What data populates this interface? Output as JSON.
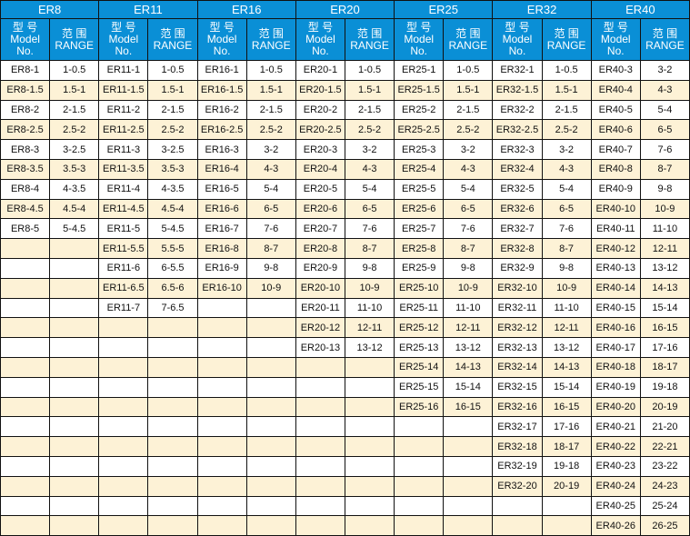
{
  "header": {
    "model_label": "型 号\nModel\nNo.",
    "range_label": "范 围\nRANGE"
  },
  "colors": {
    "header_bg": "#0a8fd6",
    "stripe": "#fdf2d6"
  },
  "groups": [
    {
      "name": "ER8",
      "rows": [
        [
          "ER8-1",
          "1-0.5"
        ],
        [
          "ER8-1.5",
          "1.5-1"
        ],
        [
          "ER8-2",
          "2-1.5"
        ],
        [
          "ER8-2.5",
          "2.5-2"
        ],
        [
          "ER8-3",
          "3-2.5"
        ],
        [
          "ER8-3.5",
          "3.5-3"
        ],
        [
          "ER8-4",
          "4-3.5"
        ],
        [
          "ER8-4.5",
          "4.5-4"
        ],
        [
          "ER8-5",
          "5-4.5"
        ]
      ]
    },
    {
      "name": "ER11",
      "rows": [
        [
          "ER11-1",
          "1-0.5"
        ],
        [
          "ER11-1.5",
          "1.5-1"
        ],
        [
          "ER11-2",
          "2-1.5"
        ],
        [
          "ER11-2.5",
          "2.5-2"
        ],
        [
          "ER11-3",
          "3-2.5"
        ],
        [
          "ER11-3.5",
          "3.5-3"
        ],
        [
          "ER11-4",
          "4-3.5"
        ],
        [
          "ER11-4.5",
          "4.5-4"
        ],
        [
          "ER11-5",
          "5-4.5"
        ],
        [
          "ER11-5.5",
          "5.5-5"
        ],
        [
          "ER11-6",
          "6-5.5"
        ],
        [
          "ER11-6.5",
          "6.5-6"
        ],
        [
          "ER11-7",
          "7-6.5"
        ]
      ]
    },
    {
      "name": "ER16",
      "rows": [
        [
          "ER16-1",
          "1-0.5"
        ],
        [
          "ER16-1.5",
          "1.5-1"
        ],
        [
          "ER16-2",
          "2-1.5"
        ],
        [
          "ER16-2.5",
          "2.5-2"
        ],
        [
          "ER16-3",
          "3-2"
        ],
        [
          "ER16-4",
          "4-3"
        ],
        [
          "ER16-5",
          "5-4"
        ],
        [
          "ER16-6",
          "6-5"
        ],
        [
          "ER16-7",
          "7-6"
        ],
        [
          "ER16-8",
          "8-7"
        ],
        [
          "ER16-9",
          "9-8"
        ],
        [
          "ER16-10",
          "10-9"
        ]
      ]
    },
    {
      "name": "ER20",
      "rows": [
        [
          "ER20-1",
          "1-0.5"
        ],
        [
          "ER20-1.5",
          "1.5-1"
        ],
        [
          "ER20-2",
          "2-1.5"
        ],
        [
          "ER20-2.5",
          "2.5-2"
        ],
        [
          "ER20-3",
          "3-2"
        ],
        [
          "ER20-4",
          "4-3"
        ],
        [
          "ER20-5",
          "5-4"
        ],
        [
          "ER20-6",
          "6-5"
        ],
        [
          "ER20-7",
          "7-6"
        ],
        [
          "ER20-8",
          "8-7"
        ],
        [
          "ER20-9",
          "9-8"
        ],
        [
          "ER20-10",
          "10-9"
        ],
        [
          "ER20-11",
          "11-10"
        ],
        [
          "ER20-12",
          "12-11"
        ],
        [
          "ER20-13",
          "13-12"
        ]
      ]
    },
    {
      "name": "ER25",
      "rows": [
        [
          "ER25-1",
          "1-0.5"
        ],
        [
          "ER25-1.5",
          "1.5-1"
        ],
        [
          "ER25-2",
          "2-1.5"
        ],
        [
          "ER25-2.5",
          "2.5-2"
        ],
        [
          "ER25-3",
          "3-2"
        ],
        [
          "ER25-4",
          "4-3"
        ],
        [
          "ER25-5",
          "5-4"
        ],
        [
          "ER25-6",
          "6-5"
        ],
        [
          "ER25-7",
          "7-6"
        ],
        [
          "ER25-8",
          "8-7"
        ],
        [
          "ER25-9",
          "9-8"
        ],
        [
          "ER25-10",
          "10-9"
        ],
        [
          "ER25-11",
          "11-10"
        ],
        [
          "ER25-12",
          "12-11"
        ],
        [
          "ER25-13",
          "13-12"
        ],
        [
          "ER25-14",
          "14-13"
        ],
        [
          "ER25-15",
          "15-14"
        ],
        [
          "ER25-16",
          "16-15"
        ]
      ]
    },
    {
      "name": "ER32",
      "rows": [
        [
          "ER32-1",
          "1-0.5"
        ],
        [
          "ER32-1.5",
          "1.5-1"
        ],
        [
          "ER32-2",
          "2-1.5"
        ],
        [
          "ER32-2.5",
          "2.5-2"
        ],
        [
          "ER32-3",
          "3-2"
        ],
        [
          "ER32-4",
          "4-3"
        ],
        [
          "ER32-5",
          "5-4"
        ],
        [
          "ER32-6",
          "6-5"
        ],
        [
          "ER32-7",
          "7-6"
        ],
        [
          "ER32-8",
          "8-7"
        ],
        [
          "ER32-9",
          "9-8"
        ],
        [
          "ER32-10",
          "10-9"
        ],
        [
          "ER32-11",
          "11-10"
        ],
        [
          "ER32-12",
          "12-11"
        ],
        [
          "ER32-13",
          "13-12"
        ],
        [
          "ER32-14",
          "14-13"
        ],
        [
          "ER32-15",
          "15-14"
        ],
        [
          "ER32-16",
          "16-15"
        ],
        [
          "ER32-17",
          "17-16"
        ],
        [
          "ER32-18",
          "18-17"
        ],
        [
          "ER32-19",
          "19-18"
        ],
        [
          "ER32-20",
          "20-19"
        ]
      ]
    },
    {
      "name": "ER40",
      "rows": [
        [
          "ER40-3",
          "3-2"
        ],
        [
          "ER40-4",
          "4-3"
        ],
        [
          "ER40-5",
          "5-4"
        ],
        [
          "ER40-6",
          "6-5"
        ],
        [
          "ER40-7",
          "7-6"
        ],
        [
          "ER40-8",
          "8-7"
        ],
        [
          "ER40-9",
          "9-8"
        ],
        [
          "ER40-10",
          "10-9"
        ],
        [
          "ER40-11",
          "11-10"
        ],
        [
          "ER40-12",
          "12-11"
        ],
        [
          "ER40-13",
          "13-12"
        ],
        [
          "ER40-14",
          "14-13"
        ],
        [
          "ER40-15",
          "15-14"
        ],
        [
          "ER40-16",
          "16-15"
        ],
        [
          "ER40-17",
          "17-16"
        ],
        [
          "ER40-18",
          "18-17"
        ],
        [
          "ER40-19",
          "19-18"
        ],
        [
          "ER40-20",
          "20-19"
        ],
        [
          "ER40-21",
          "21-20"
        ],
        [
          "ER40-22",
          "22-21"
        ],
        [
          "ER40-23",
          "23-22"
        ],
        [
          "ER40-24",
          "24-23"
        ],
        [
          "ER40-25",
          "25-24"
        ],
        [
          "ER40-26",
          "26-25"
        ]
      ]
    }
  ]
}
